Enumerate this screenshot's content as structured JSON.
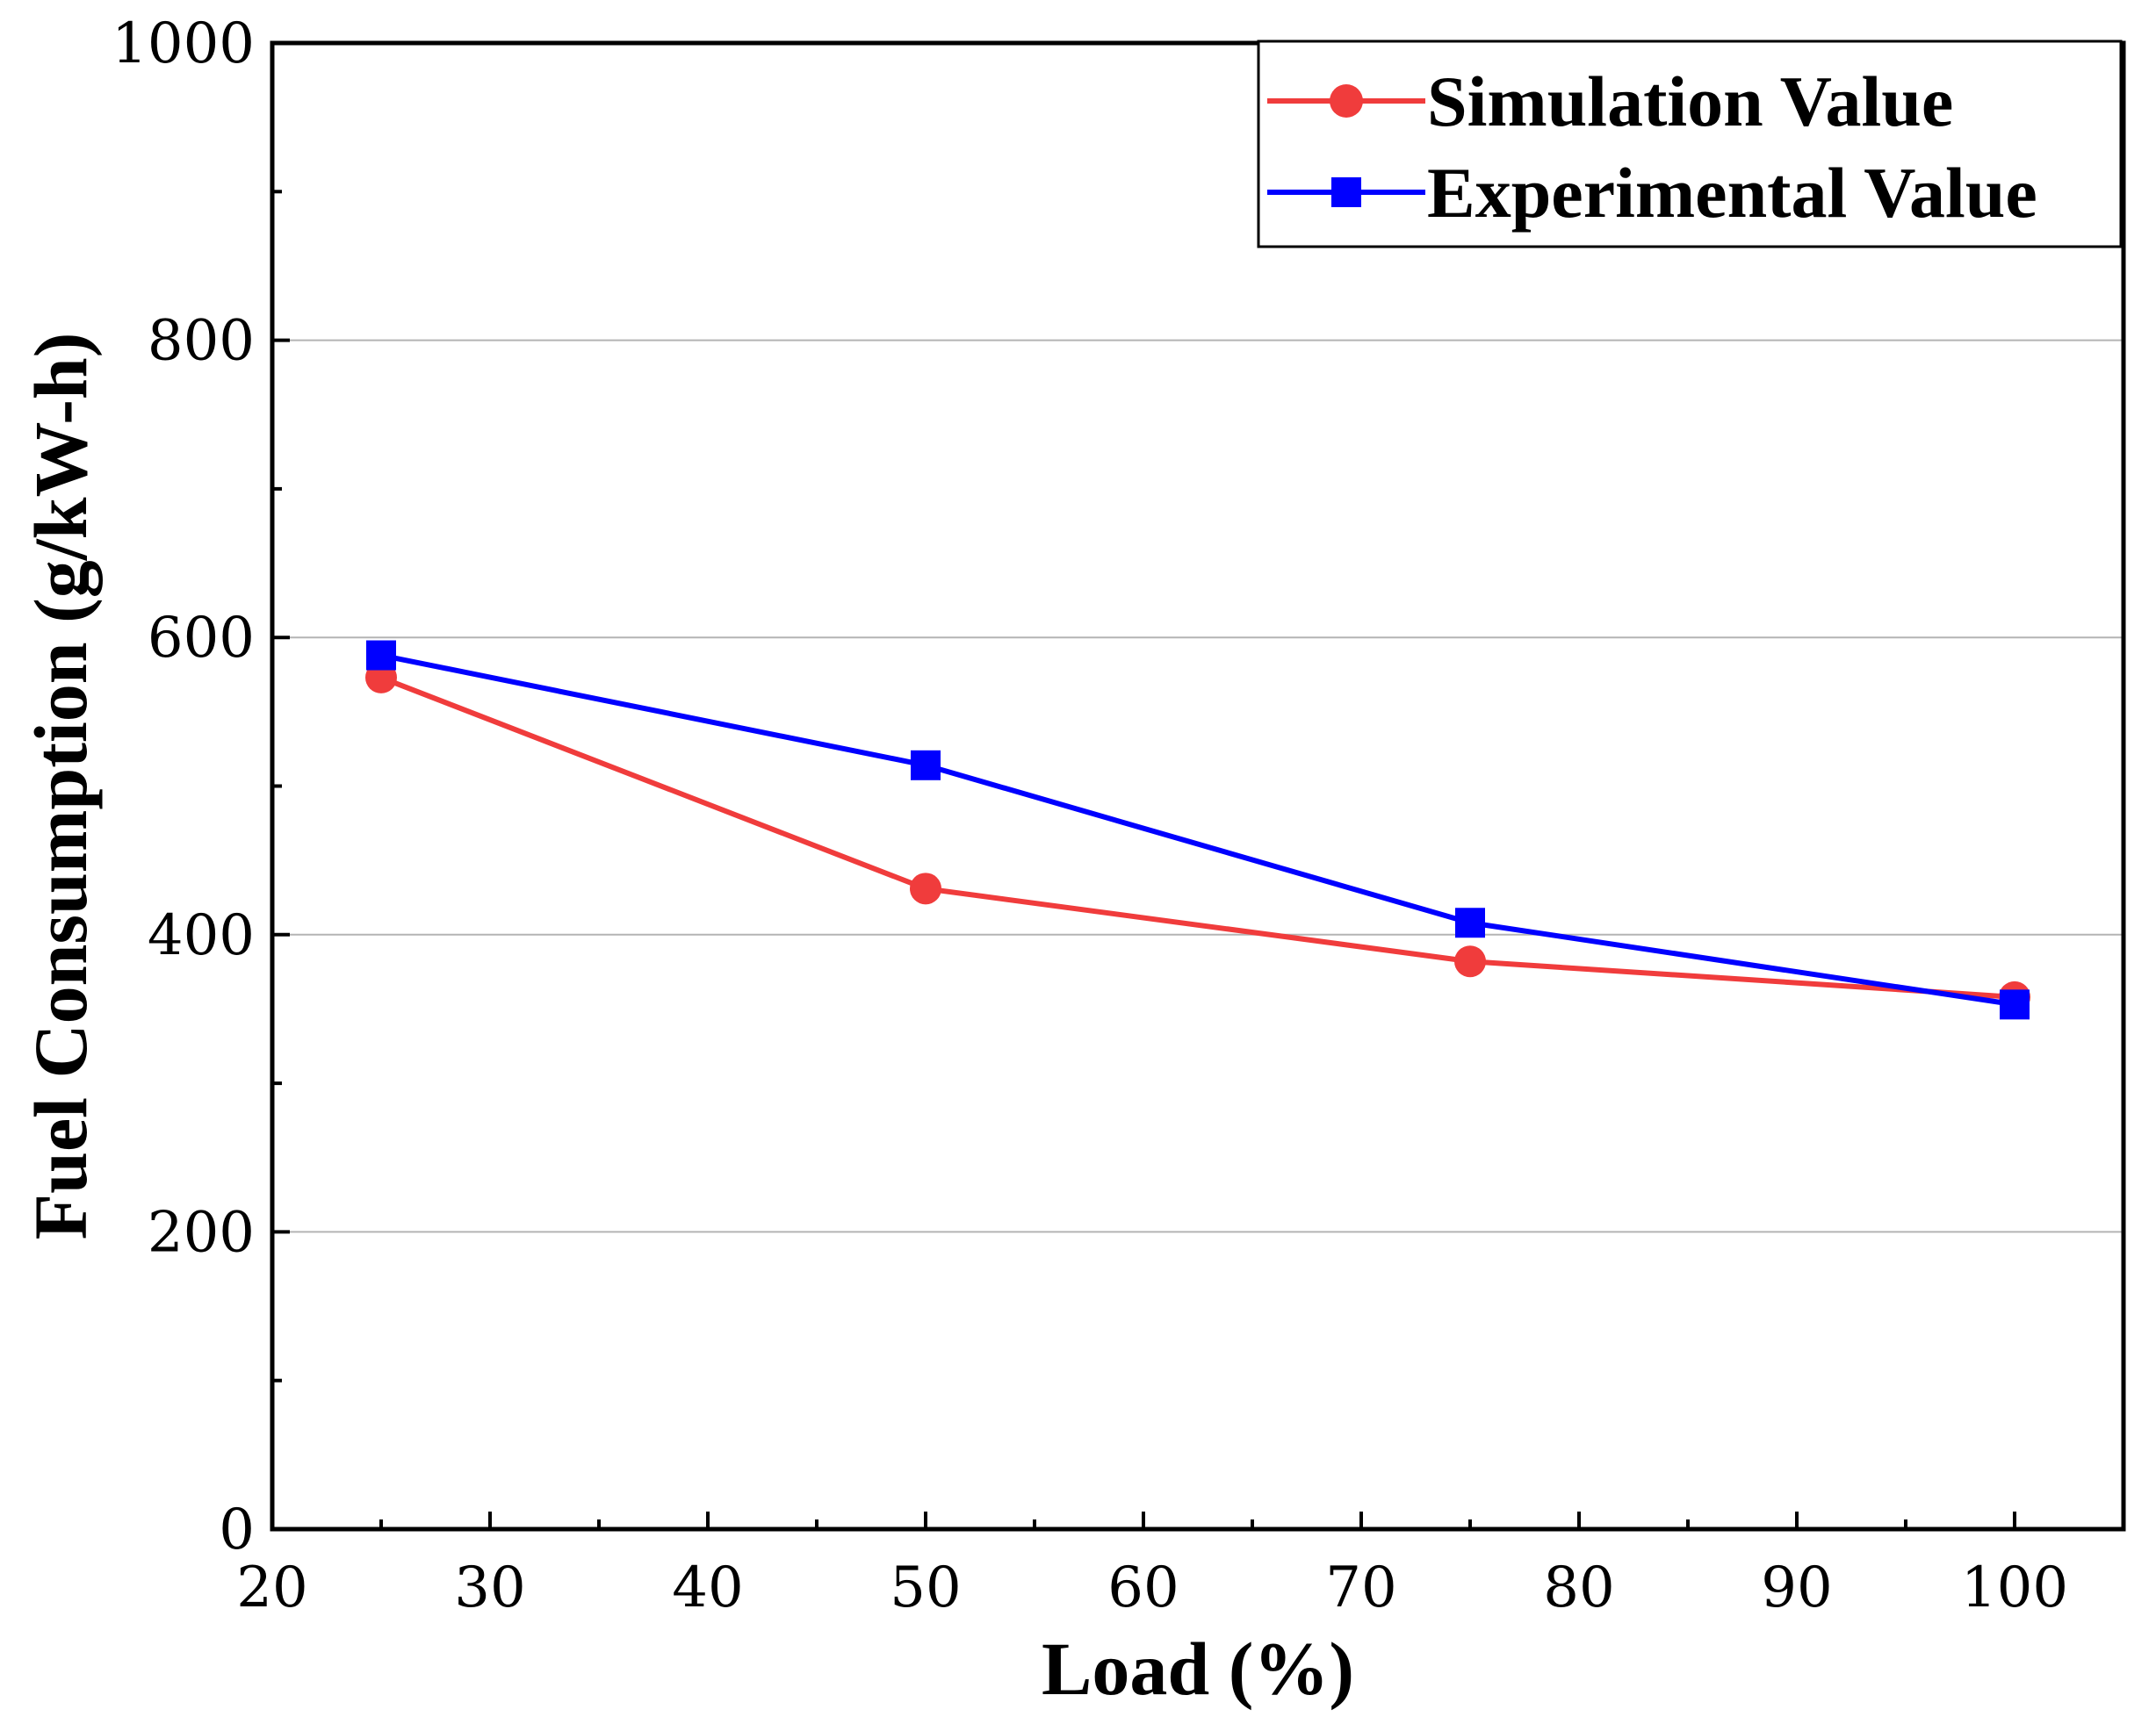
{
  "chart_data": {
    "type": "line",
    "title": "",
    "xlabel": "Load (%)",
    "ylabel": "Fuel Consumption (g/kW-h)",
    "xlim": [
      20,
      105
    ],
    "ylim": [
      0,
      1000
    ],
    "x_ticks": [
      20,
      30,
      40,
      50,
      60,
      70,
      80,
      90,
      100
    ],
    "y_ticks": [
      0,
      200,
      400,
      600,
      800,
      1000
    ],
    "grid": "horizontal major lines",
    "legend_position": "top-right",
    "x": [
      25,
      50,
      75,
      100
    ],
    "series": [
      {
        "name": "Simulation  Value",
        "color": "#f03c3c",
        "marker": "circle",
        "values": [
          573,
          431,
          382,
          358
        ]
      },
      {
        "name": "Experimental  Value",
        "color": "#0000ff",
        "marker": "square",
        "values": [
          588,
          514,
          408,
          353
        ]
      }
    ]
  }
}
